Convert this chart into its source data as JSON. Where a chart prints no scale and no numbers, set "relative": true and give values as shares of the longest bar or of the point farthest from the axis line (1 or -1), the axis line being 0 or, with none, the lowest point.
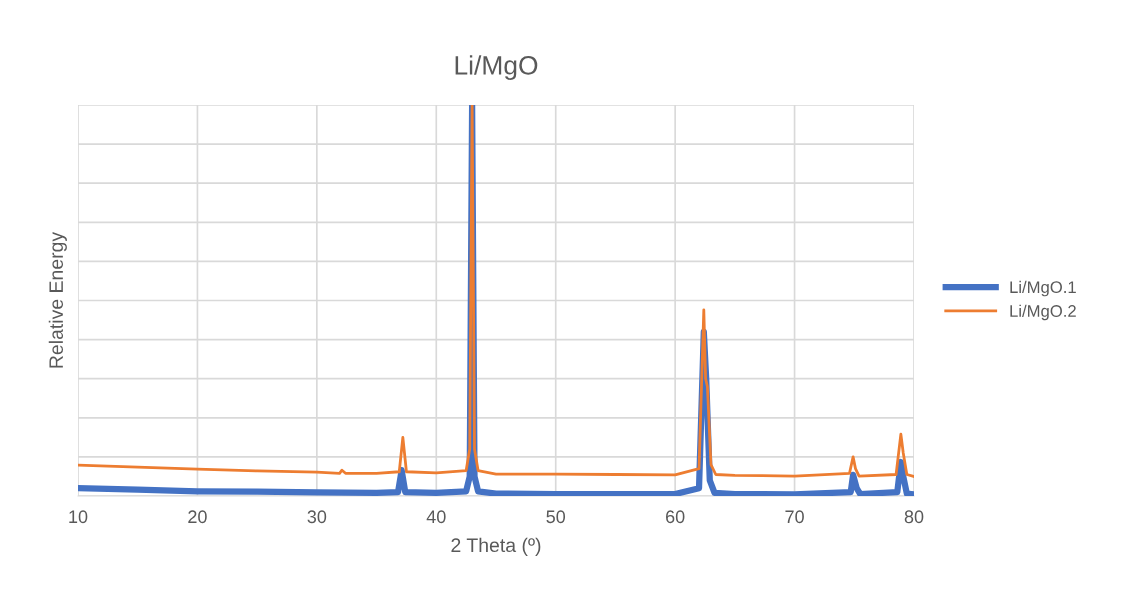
{
  "chart_data": {
    "type": "line",
    "title": "Li/MgO",
    "xlabel": "2 Theta (º)",
    "ylabel": "Relative Energy",
    "relative": true,
    "xlim": [
      10,
      80
    ],
    "xticks": [
      10,
      20,
      30,
      40,
      50,
      60,
      70,
      80
    ],
    "grid": true,
    "legend": "right",
    "marker": "none",
    "line_style": "solid",
    "series": [
      {
        "name": "Li/MgO.1",
        "color": "#4472c4",
        "x": [
          10,
          15,
          20,
          25,
          30,
          35,
          36.8,
          37.1,
          37.4,
          40,
          42.5,
          42.8,
          43.0,
          43.2,
          43.5,
          45,
          50,
          55,
          60,
          62.0,
          62.4,
          62.6,
          62.9,
          63.3,
          65,
          70,
          74.7,
          74.9,
          75.2,
          75.5,
          78.6,
          78.9,
          79.1,
          79.4,
          80
        ],
        "values": [
          0.02,
          0.016,
          0.012,
          0.011,
          0.009,
          0.008,
          0.01,
          0.066,
          0.01,
          0.008,
          0.012,
          0.05,
          1,
          0.05,
          0.012,
          0.006,
          0.005,
          0.005,
          0.005,
          0.02,
          0.42,
          0.3,
          0.04,
          0.008,
          0.005,
          0.004,
          0.01,
          0.054,
          0.02,
          0.005,
          0.01,
          0.087,
          0.05,
          0.006,
          0.004
        ]
      },
      {
        "name": "Li/MgO.2",
        "color": "#ed7d31",
        "x": [
          10,
          15,
          20,
          25,
          30,
          31.9,
          32.1,
          32.4,
          35,
          36.9,
          37.2,
          37.5,
          40,
          42.5,
          42.8,
          43.0,
          43.2,
          43.5,
          45,
          50,
          55,
          60,
          62.0,
          62.4,
          62.55,
          62.7,
          63.0,
          63.4,
          65,
          70,
          74.6,
          74.9,
          75.1,
          75.4,
          78.5,
          78.9,
          79.1,
          79.4,
          80
        ],
        "values": [
          0.079,
          0.074,
          0.069,
          0.064,
          0.061,
          0.058,
          0.066,
          0.058,
          0.058,
          0.062,
          0.15,
          0.062,
          0.059,
          0.065,
          0.12,
          1,
          0.12,
          0.065,
          0.056,
          0.056,
          0.055,
          0.054,
          0.07,
          0.476,
          0.3,
          0.28,
          0.08,
          0.055,
          0.053,
          0.051,
          0.058,
          0.1,
          0.07,
          0.051,
          0.055,
          0.158,
          0.11,
          0.055,
          0.05
        ]
      }
    ]
  }
}
